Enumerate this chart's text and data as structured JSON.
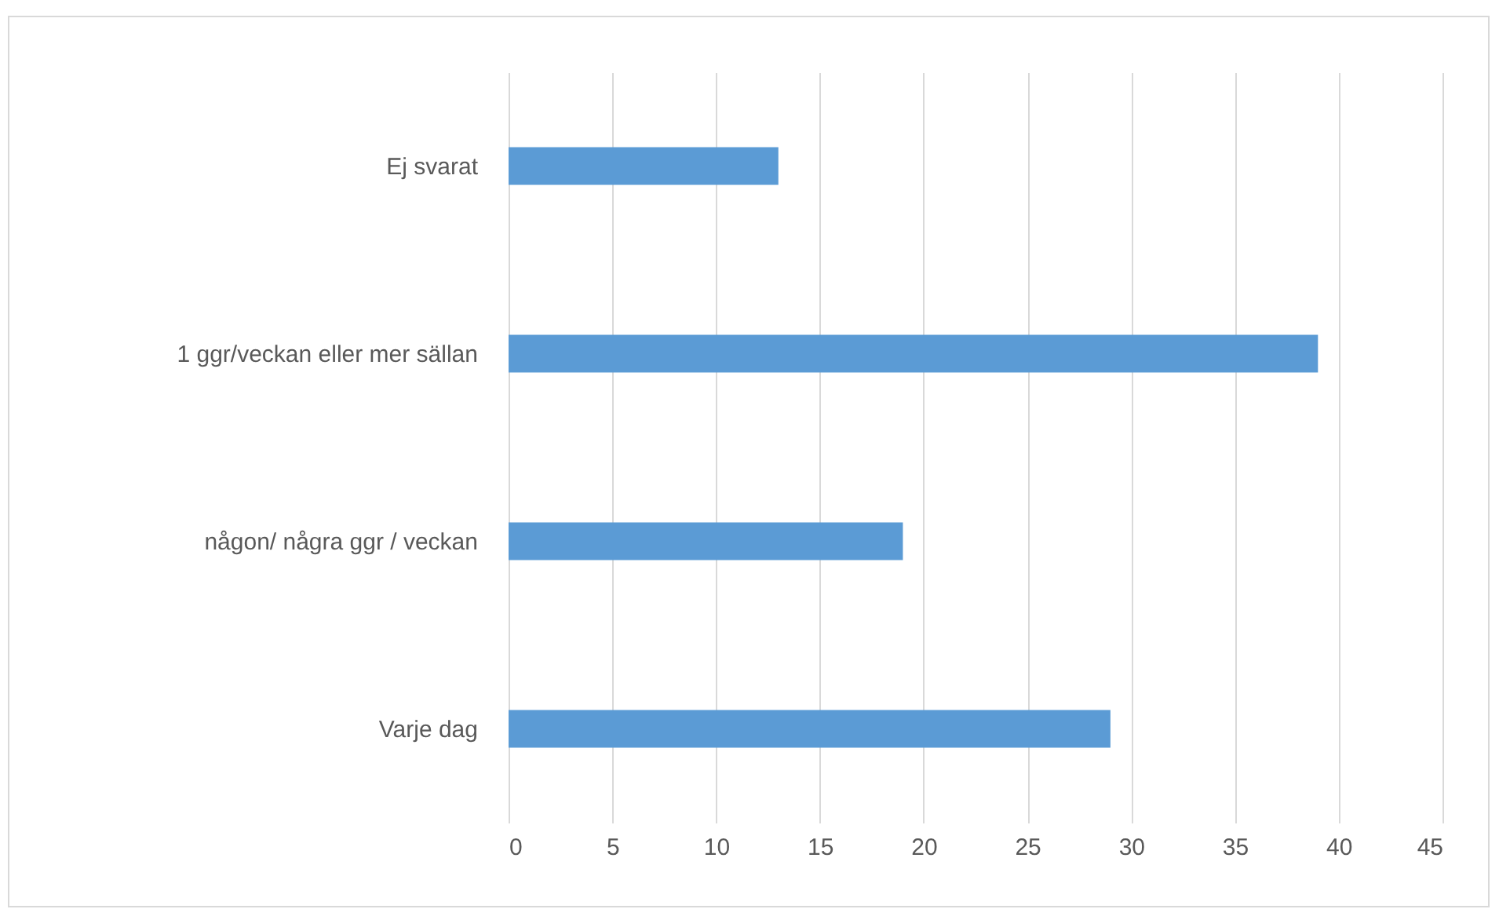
{
  "chart_data": {
    "type": "bar",
    "orientation": "horizontal",
    "categories": [
      "Ej svarat",
      "1 ggr/veckan eller mer sällan",
      "någon/ några ggr / veckan",
      "Varje dag"
    ],
    "values": [
      13,
      39,
      19,
      29
    ],
    "color": "#5b9bd5",
    "xlim": [
      0,
      45
    ],
    "xticks": [
      0,
      5,
      10,
      15,
      20,
      25,
      30,
      35,
      40,
      45
    ],
    "grid": "x"
  }
}
